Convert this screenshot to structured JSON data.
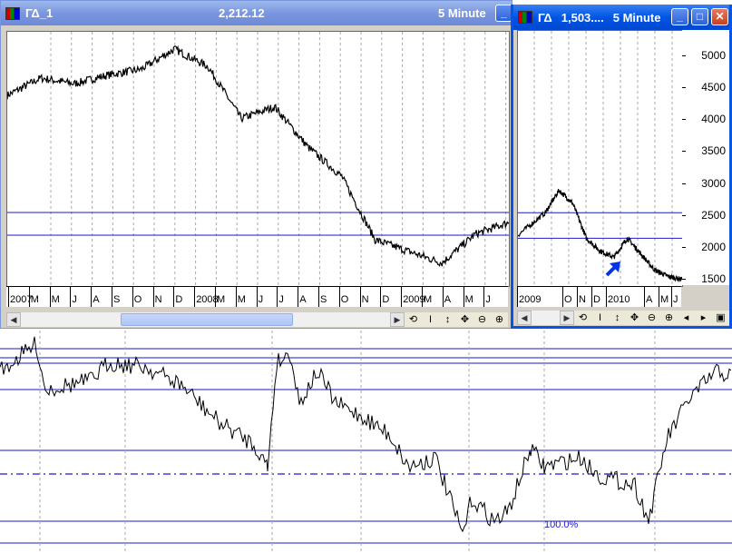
{
  "window_main": {
    "symbol": "ΓΔ_1",
    "price": "2,212.12",
    "interval": "5 Minute",
    "x_labels": [
      "2007",
      "M",
      "M",
      "J",
      "A",
      "S",
      "O",
      "N",
      "D",
      "2008",
      "M",
      "M",
      "J",
      "J",
      "A",
      "S",
      "O",
      "N",
      "D",
      "2009",
      "M",
      "A",
      "M",
      "J"
    ],
    "toolbar_icons": [
      "refresh-icon",
      "cursor-icon",
      "vertical-scale-icon",
      "move-icon",
      "zoom-out-icon",
      "zoom-in-icon"
    ]
  },
  "window_detail": {
    "symbol": "ΓΔ",
    "price": "1,503....",
    "interval": "5 Minute",
    "y_labels": [
      "5000",
      "4500",
      "4000",
      "3500",
      "3000",
      "2500",
      "2000",
      "1500"
    ],
    "x_labels": [
      "2009",
      "O",
      "N",
      "D",
      "2010",
      "A",
      "M",
      "J"
    ],
    "toolbar_icons": [
      "refresh-icon",
      "cursor-icon",
      "vertical-scale-icon",
      "move-icon",
      "zoom-out-icon",
      "zoom-in-icon",
      "left-arrow-icon",
      "right-arrow-icon",
      "window-icon"
    ]
  },
  "oscillator": {
    "level_label": "100.0%"
  },
  "colors": {
    "level_line": "#1a1acc",
    "arrow": "#0033ee",
    "price_line": "#000000"
  },
  "chart_data": [
    {
      "type": "line",
      "name": "",
      "x": [
        "2007-01",
        "2007-03",
        "2007-05",
        "2007-07",
        "2007-09",
        "2007-11",
        "2008-01",
        "2008-03",
        "2008-05",
        "2008-07",
        "2008-09",
        "2008-11",
        "2009-01",
        "2009-03",
        "2009-05",
        "2009-07"
      ],
      "values": [
        4400,
        4700,
        4600,
        4750,
        4850,
        5200,
        4900,
        4000,
        4200,
        3500,
        3000,
        1900,
        1700,
        1500,
        2000,
        2200
      ]
    },
    {
      "type": "line",
      "name": "",
      "x": [
        "2009-07",
        "2009-09",
        "2009-10",
        "2009-11",
        "2009-12",
        "2010-01",
        "2010-02",
        "2010-03",
        "2010-04",
        "2010-05",
        "2010-06",
        "2010-07"
      ],
      "values": [
        2200,
        2550,
        2900,
        2700,
        2150,
        1950,
        1850,
        2150,
        1900,
        1650,
        1550,
        1503
      ],
      "ylim": [
        1400,
        5400
      ]
    }
  ]
}
